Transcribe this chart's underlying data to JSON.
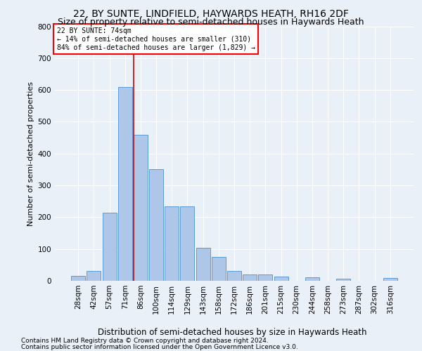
{
  "title": "22, BY SUNTE, LINDFIELD, HAYWARDS HEATH, RH16 2DF",
  "subtitle": "Size of property relative to semi-detached houses in Haywards Heath",
  "xlabel": "Distribution of semi-detached houses by size in Haywards Heath",
  "ylabel": "Number of semi-detached properties",
  "footnote1": "Contains HM Land Registry data © Crown copyright and database right 2024.",
  "footnote2": "Contains public sector information licensed under the Open Government Licence v3.0.",
  "categories": [
    "28sqm",
    "42sqm",
    "57sqm",
    "71sqm",
    "86sqm",
    "100sqm",
    "114sqm",
    "129sqm",
    "143sqm",
    "158sqm",
    "172sqm",
    "186sqm",
    "201sqm",
    "215sqm",
    "230sqm",
    "244sqm",
    "258sqm",
    "273sqm",
    "287sqm",
    "302sqm",
    "316sqm"
  ],
  "values": [
    15,
    32,
    215,
    610,
    460,
    350,
    235,
    235,
    103,
    76,
    30,
    20,
    20,
    14,
    0,
    10,
    0,
    7,
    0,
    0,
    8
  ],
  "bar_color": "#aec6e8",
  "bar_edge_color": "#5b9bd5",
  "annotation_text_line1": "22 BY SUNTE: 74sqm",
  "annotation_text_line2": "← 14% of semi-detached houses are smaller (310)",
  "annotation_text_line3": "84% of semi-detached houses are larger (1,829) →",
  "annotation_box_color": "white",
  "annotation_box_edge": "red",
  "vline_color": "#cc0000",
  "vline_x": 3.575,
  "ylim": [
    0,
    800
  ],
  "yticks": [
    0,
    100,
    200,
    300,
    400,
    500,
    600,
    700,
    800
  ],
  "bg_color": "#eaf0f8",
  "plot_bg_color": "#eaf0f8",
  "grid_color": "white",
  "title_fontsize": 10,
  "subtitle_fontsize": 9,
  "xlabel_fontsize": 8.5,
  "ylabel_fontsize": 8,
  "tick_fontsize": 7.5,
  "footnote_fontsize": 6.5
}
